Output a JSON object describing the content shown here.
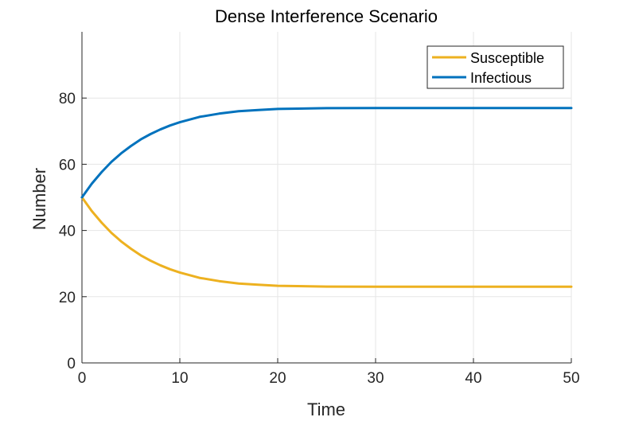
{
  "chart_data": {
    "type": "line",
    "title": "Dense Interference Scenario",
    "xlabel": "Time",
    "ylabel": "Number",
    "xlim": [
      0,
      50
    ],
    "ylim": [
      0,
      100
    ],
    "xticks": [
      0,
      10,
      20,
      30,
      40,
      50
    ],
    "yticks": [
      0,
      20,
      40,
      60,
      80
    ],
    "grid": true,
    "legend_location": "top-right",
    "x": [
      0,
      1,
      2,
      3,
      4,
      5,
      6,
      7,
      8,
      9,
      10,
      12,
      14,
      16,
      18,
      20,
      25,
      30,
      35,
      40,
      45,
      50
    ],
    "series": [
      {
        "name": "Susceptible",
        "color": "#EDB120",
        "values": [
          50,
          45.9,
          42.4,
          39.3,
          36.7,
          34.5,
          32.5,
          30.9,
          29.5,
          28.3,
          27.3,
          25.7,
          24.7,
          24.0,
          23.6,
          23.3,
          23.05,
          23.0,
          23.0,
          23.0,
          23.0,
          23.0
        ]
      },
      {
        "name": "Infectious",
        "color": "#0072BD",
        "values": [
          50,
          54.1,
          57.6,
          60.7,
          63.3,
          65.5,
          67.5,
          69.1,
          70.5,
          71.7,
          72.7,
          74.3,
          75.3,
          76.0,
          76.4,
          76.7,
          76.95,
          77.0,
          77.0,
          77.0,
          77.0,
          77.0
        ]
      }
    ]
  }
}
